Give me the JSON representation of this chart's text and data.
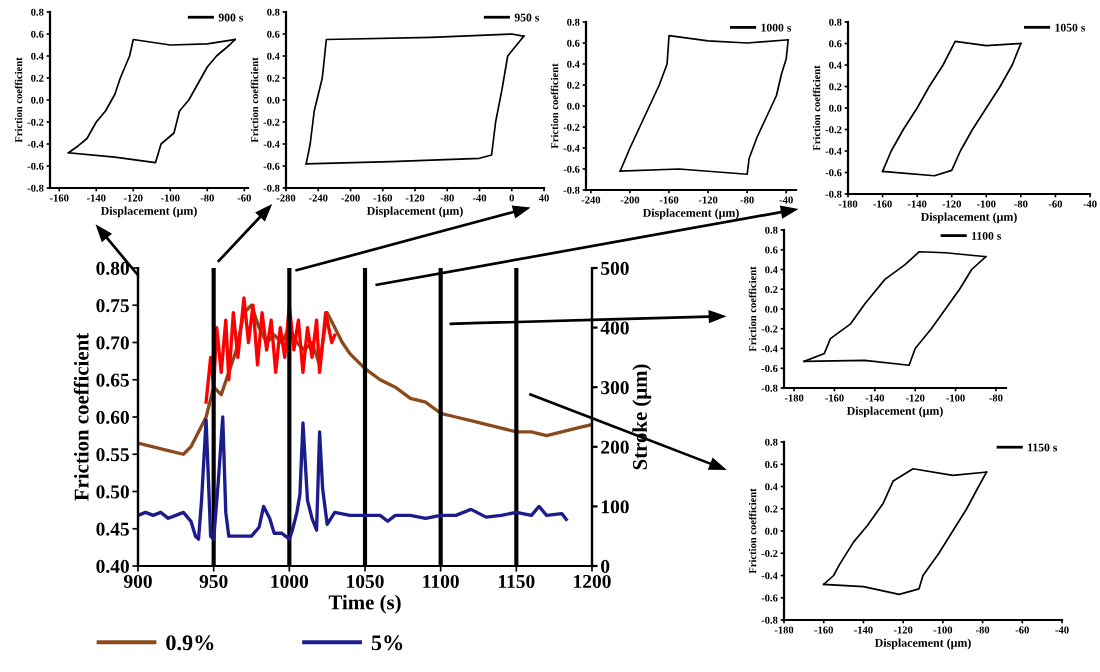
{
  "chart_data": [
    {
      "type": "line",
      "xlabel": "Displacement (μm)",
      "ylabel": "Friction coefficient",
      "legend": "top right",
      "xlim": [
        -165,
        -58
      ],
      "xticks": [
        -160,
        -140,
        -120,
        -100,
        -80,
        -60
      ],
      "ylim": [
        -0.8,
        0.8
      ],
      "yticks": [
        0.8,
        0.6,
        0.4,
        0.2,
        {
          "value": 0,
          "label": "0.0"
        },
        -0.2,
        -0.4,
        -0.6,
        -0.8
      ],
      "series": [
        {
          "name": "900 s",
          "color": "#000000",
          "x": [
            -155,
            -130,
            -108,
            -105,
            -98,
            -95,
            -90,
            -85,
            -80,
            -75,
            -68,
            -65
          ],
          "values": [
            -0.48,
            -0.52,
            -0.57,
            -0.4,
            -0.3,
            -0.1,
            0.0,
            0.15,
            0.3,
            0.4,
            0.5,
            0.55
          ]
        },
        {
          "color": "#000000",
          "x": [
            -155,
            -150,
            -145,
            -140,
            -135,
            -130,
            -127,
            -122,
            -120,
            -100,
            -80,
            -65
          ],
          "values": [
            -0.48,
            -0.42,
            -0.35,
            -0.2,
            -0.1,
            0.05,
            0.2,
            0.4,
            0.55,
            0.5,
            0.51,
            0.55
          ]
        }
      ]
    },
    {
      "type": "line",
      "xlabel": "Displacement (μm)",
      "ylabel": "Friction coefficient",
      "legend": "top right",
      "xlim": [
        -280,
        40
      ],
      "xticks": [
        -280,
        -240,
        -200,
        -160,
        -120,
        -80,
        -40,
        0,
        40
      ],
      "ylim": [
        -0.8,
        0.8
      ],
      "yticks": [
        0.8,
        0.6,
        0.4,
        0.2,
        {
          "value": 0,
          "label": "0.0"
        },
        -0.2,
        -0.4,
        -0.6,
        -0.8
      ],
      "series": [
        {
          "name": "950 s",
          "color": "#000000",
          "x": [
            -255,
            -150,
            -40,
            -25,
            -20,
            -12,
            -5,
            15
          ],
          "values": [
            -0.58,
            -0.56,
            -0.53,
            -0.5,
            -0.2,
            0.1,
            0.4,
            0.58
          ]
        },
        {
          "color": "#000000",
          "x": [
            -255,
            -250,
            -245,
            -235,
            -230,
            -100,
            0,
            15
          ],
          "values": [
            -0.58,
            -0.4,
            -0.1,
            0.2,
            0.55,
            0.57,
            0.6,
            0.58
          ]
        }
      ]
    },
    {
      "type": "line",
      "xlabel": "Displacement (μm)",
      "ylabel": "Friction coefficient",
      "legend": "top right",
      "xlim": [
        -245,
        -30
      ],
      "xticks": [
        -240,
        -200,
        -160,
        -120,
        -80,
        -40
      ],
      "ylim": [
        -0.8,
        0.8
      ],
      "yticks": [
        0.8,
        0.6,
        0.4,
        0.2,
        {
          "value": 0,
          "label": "0.0"
        },
        -0.2,
        -0.4,
        -0.6,
        -0.8
      ],
      "series": [
        {
          "name": "1000 s",
          "color": "#000000",
          "x": [
            -210,
            -150,
            -80,
            -78,
            -70,
            -60,
            -50,
            -45,
            -40,
            -38
          ],
          "values": [
            -0.62,
            -0.6,
            -0.65,
            -0.5,
            -0.3,
            -0.1,
            0.1,
            0.3,
            0.45,
            0.63
          ]
        },
        {
          "color": "#000000",
          "x": [
            -210,
            -200,
            -190,
            -180,
            -170,
            -162,
            -160,
            -120,
            -80,
            -38
          ],
          "values": [
            -0.62,
            -0.4,
            -0.2,
            0.0,
            0.2,
            0.4,
            0.67,
            0.62,
            0.6,
            0.63
          ]
        }
      ]
    },
    {
      "type": "line",
      "xlabel": "Displacement (μm)",
      "ylabel": "Friction coefficient",
      "legend": "top right",
      "xlim": [
        -180,
        -40
      ],
      "xticks": [
        -180,
        -160,
        -140,
        -120,
        -100,
        -80,
        -60,
        -40
      ],
      "ylim": [
        -0.8,
        0.8
      ],
      "yticks": [
        0.8,
        0.6,
        0.4,
        0.2,
        {
          "value": 0,
          "label": "0.0"
        },
        -0.2,
        -0.4,
        -0.6,
        -0.8
      ],
      "series": [
        {
          "name": "1050 s",
          "color": "#000000",
          "x": [
            -160,
            -130,
            -120,
            -115,
            -108,
            -100,
            -92,
            -85,
            -80
          ],
          "values": [
            -0.59,
            -0.63,
            -0.58,
            -0.4,
            -0.2,
            0.0,
            0.2,
            0.4,
            0.6
          ]
        },
        {
          "color": "#000000",
          "x": [
            -160,
            -155,
            -148,
            -140,
            -133,
            -125,
            -118,
            -100,
            -80
          ],
          "values": [
            -0.59,
            -0.4,
            -0.2,
            0.0,
            0.2,
            0.4,
            0.62,
            0.58,
            0.6
          ]
        }
      ]
    },
    {
      "type": "line",
      "xlabel": "Time (s)",
      "ylabel": "Friction coefficient",
      "y2label": "Stroke (μm)",
      "legend": "bottom",
      "xlim": [
        900,
        1200
      ],
      "xticks": [
        900,
        950,
        1000,
        1050,
        1100,
        1150,
        1200
      ],
      "ylim": [
        0.4,
        0.8
      ],
      "yticks": [
        {
          "value": 0.4,
          "label": "0.40"
        },
        {
          "value": 0.45,
          "label": "0.45"
        },
        {
          "value": 0.5,
          "label": "0.50"
        },
        {
          "value": 0.55,
          "label": "0.55"
        },
        {
          "value": 0.6,
          "label": "0.60"
        },
        {
          "value": 0.65,
          "label": "0.65"
        },
        {
          "value": 0.7,
          "label": "0.70"
        },
        {
          "value": 0.75,
          "label": "0.75"
        },
        {
          "value": 0.8,
          "label": "0.80"
        }
      ],
      "y2lim": [
        0,
        500
      ],
      "y2ticks": [
        0,
        100,
        200,
        300,
        400,
        500
      ],
      "ref_lines": [
        {
          "axis": "x",
          "value": 950,
          "color": "#000000"
        },
        {
          "axis": "x",
          "value": 1000,
          "color": "#000000"
        },
        {
          "axis": "x",
          "value": 1050,
          "color": "#000000"
        },
        {
          "axis": "x",
          "value": 1100,
          "color": "#000000"
        },
        {
          "axis": "x",
          "value": 1150,
          "color": "#000000"
        }
      ],
      "series": [
        {
          "name": "0.9%",
          "color": "#8b4a1c",
          "x": [
            900,
            910,
            920,
            930,
            935,
            940,
            945,
            950,
            955,
            960,
            965,
            970,
            975,
            980,
            985,
            990,
            995,
            1000,
            1005,
            1010,
            1015,
            1020,
            1025,
            1030,
            1035,
            1040,
            1050,
            1060,
            1070,
            1080,
            1090,
            1100,
            1110,
            1120,
            1130,
            1140,
            1150,
            1160,
            1170,
            1180,
            1190,
            1200
          ],
          "values": [
            0.565,
            0.56,
            0.555,
            0.55,
            0.56,
            0.58,
            0.6,
            0.64,
            0.63,
            0.66,
            0.69,
            0.74,
            0.75,
            0.72,
            0.7,
            0.71,
            0.7,
            0.72,
            0.7,
            0.69,
            0.7,
            0.67,
            0.74,
            0.72,
            0.7,
            0.685,
            0.665,
            0.65,
            0.64,
            0.625,
            0.62,
            0.605,
            0.6,
            0.595,
            0.59,
            0.585,
            0.58,
            0.58,
            0.575,
            0.58,
            0.585,
            0.59
          ]
        },
        {
          "color": "#ff0000",
          "x": [
            945,
            948,
            950,
            952,
            955,
            958,
            960,
            963,
            966,
            970,
            973,
            976,
            979,
            982,
            985,
            988,
            991,
            994,
            997,
            1000,
            1003,
            1006,
            1009,
            1012,
            1015,
            1018,
            1020,
            1024,
            1028,
            1030
          ],
          "values": [
            0.62,
            0.68,
            0.64,
            0.72,
            0.66,
            0.73,
            0.65,
            0.74,
            0.68,
            0.76,
            0.7,
            0.75,
            0.67,
            0.74,
            0.69,
            0.73,
            0.66,
            0.72,
            0.68,
            0.75,
            0.69,
            0.73,
            0.66,
            0.72,
            0.68,
            0.73,
            0.66,
            0.74,
            0.7,
            0.71
          ]
        },
        {
          "name": "5%",
          "color": "#1c1c8c",
          "axis": "y2",
          "x": [
            900,
            905,
            910,
            915,
            920,
            925,
            930,
            935,
            938,
            940,
            942,
            945,
            948,
            950,
            953,
            956,
            958,
            960,
            965,
            975,
            980,
            983,
            987,
            990,
            995,
            1000,
            1002,
            1005,
            1007,
            1009,
            1012,
            1015,
            1018,
            1020,
            1022,
            1025,
            1030,
            1040,
            1050,
            1060,
            1065,
            1070,
            1080,
            1090,
            1100,
            1110,
            1120,
            1130,
            1140,
            1150,
            1160,
            1165,
            1170,
            1180,
            1183
          ],
          "values": [
            85,
            90,
            85,
            90,
            80,
            85,
            90,
            75,
            50,
            45,
            110,
            245,
            50,
            45,
            140,
            250,
            90,
            50,
            50,
            50,
            65,
            100,
            80,
            55,
            55,
            45,
            60,
            90,
            120,
            240,
            110,
            80,
            60,
            225,
            130,
            70,
            90,
            85,
            85,
            85,
            75,
            85,
            85,
            80,
            85,
            85,
            95,
            82,
            85,
            90,
            85,
            100,
            85,
            88,
            78
          ]
        }
      ]
    },
    {
      "type": "line",
      "xlabel": "Displacement (μm)",
      "ylabel": "Friction coefficient",
      "legend": "top right",
      "xlim": [
        -185,
        -75
      ],
      "xticks": [
        -180,
        -160,
        -140,
        -120,
        -100,
        -80
      ],
      "ylim": [
        -0.8,
        0.8
      ],
      "yticks": [
        0.8,
        0.6,
        0.4,
        0.2,
        {
          "value": 0,
          "label": "0.0"
        },
        -0.2,
        -0.4,
        -0.6,
        -0.8
      ],
      "series": [
        {
          "name": "1100 s",
          "color": "#000000",
          "x": [
            -175,
            -145,
            -123,
            -120,
            -112,
            -105,
            -98,
            -92,
            -85
          ],
          "values": [
            -0.53,
            -0.52,
            -0.57,
            -0.4,
            -0.2,
            0.0,
            0.2,
            0.4,
            0.53
          ]
        },
        {
          "color": "#000000",
          "x": [
            -175,
            -165,
            -162,
            -152,
            -145,
            -135,
            -125,
            -118,
            -105,
            -85
          ],
          "values": [
            -0.53,
            -0.45,
            -0.3,
            -0.15,
            0.05,
            0.3,
            0.45,
            0.58,
            0.57,
            0.53
          ]
        }
      ]
    },
    {
      "type": "line",
      "xlabel": "Displacement (μm)",
      "ylabel": "Friction coefficient",
      "legend": "top right",
      "xlim": [
        -180,
        -40
      ],
      "xticks": [
        -180,
        -160,
        -140,
        -120,
        -100,
        -80,
        -60,
        -40
      ],
      "ylim": [
        -0.8,
        0.8
      ],
      "yticks": [
        0.8,
        0.6,
        0.4,
        0.2,
        {
          "value": 0,
          "label": "0.0"
        },
        -0.2,
        -0.4,
        -0.6,
        -0.8
      ],
      "series": [
        {
          "name": "1150 s",
          "color": "#000000",
          "x": [
            -160,
            -140,
            -122,
            -112,
            -110,
            -102,
            -95,
            -88,
            -82,
            -78
          ],
          "values": [
            -0.48,
            -0.5,
            -0.57,
            -0.52,
            -0.4,
            -0.2,
            0.0,
            0.2,
            0.4,
            0.53
          ]
        },
        {
          "color": "#000000",
          "x": [
            -160,
            -155,
            -152,
            -145,
            -138,
            -130,
            -125,
            -115,
            -95,
            -78
          ],
          "values": [
            -0.48,
            -0.4,
            -0.3,
            -0.1,
            0.05,
            0.25,
            0.45,
            0.56,
            0.5,
            0.53
          ]
        }
      ]
    }
  ]
}
